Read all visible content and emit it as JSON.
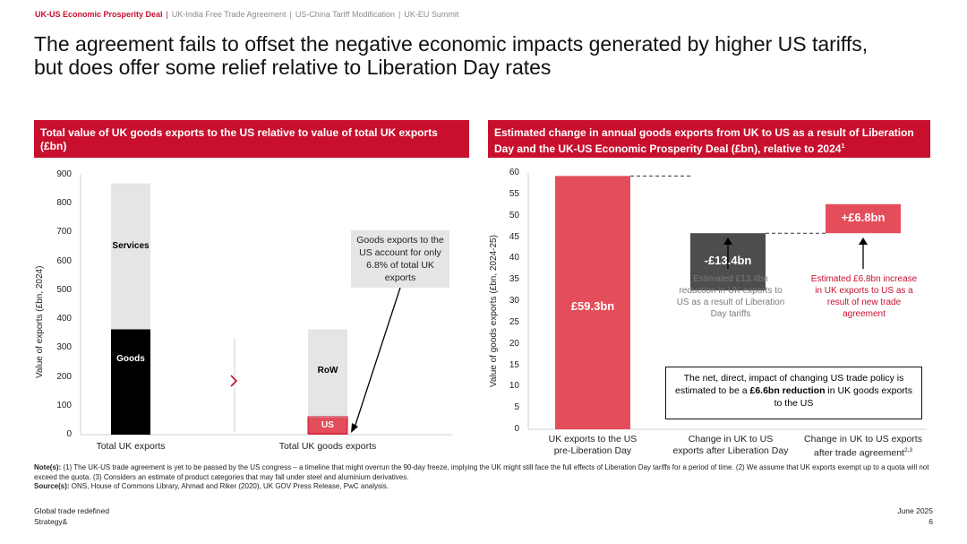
{
  "nav": {
    "active": "UK-US Economic Prosperity Deal",
    "items": [
      "UK-India Free Trade Agreement",
      "US-China Tariff Modification",
      "UK-EU Summit"
    ]
  },
  "title": {
    "line1": "The agreement fails to offset the negative economic impacts generated by higher US tariffs,",
    "line2": "but does offer some relief relative to Liberation Day rates"
  },
  "left_panel": {
    "heading": "Total value of UK goods exports to the US relative to value of total UK exports (£bn)",
    "callout": "Goods exports to the US account for only 6.8% of total UK exports"
  },
  "right_panel": {
    "heading": "Estimated change in annual goods exports from UK to US as a result of Liberation Day and the UK-US Economic Prosperity Deal (£bn), relative to 2024",
    "heading_sup": "1",
    "annotation_decrease": "Estimated £13.4bn reduction in UK exports to US as a result of Liberation Day tariffs",
    "annotation_increase": "Estimated £6.8bn increase in UK exports to US as a result of new trade agreement",
    "summary_pre": "The net, direct, impact of changing US trade policy is estimated to be a ",
    "summary_bold": "£6.6bn reduction",
    "summary_post": " in UK goods exports to the US"
  },
  "chart_data": [
    {
      "type": "bar",
      "stacked": true,
      "ylabel": "Value of exports (£bn, 2024)",
      "ylim": [
        0,
        900
      ],
      "yticks": [
        0,
        100,
        200,
        300,
        400,
        500,
        600,
        700,
        800,
        900
      ],
      "categories": [
        "Total UK exports",
        "Total UK goods exports"
      ],
      "segments": [
        {
          "category": "Total UK exports",
          "name": "Goods",
          "value": 365,
          "color": "#000000",
          "label_color": "#ffffff"
        },
        {
          "category": "Total UK exports",
          "name": "Services",
          "value": 505,
          "color": "#e5e5e5",
          "label_color": "#000000"
        },
        {
          "category": "Total UK goods exports",
          "name": "US",
          "value": 59,
          "color": "#e44d5a",
          "label_color": "#ffffff"
        },
        {
          "category": "Total UK goods exports",
          "name": "RoW",
          "value": 306,
          "color": "#e5e5e5",
          "label_color": "#000000"
        }
      ]
    },
    {
      "type": "bar",
      "waterfall": true,
      "ylabel": "Value of goods exports (£bn, 2024-25)",
      "ylim": [
        0,
        60
      ],
      "yticks": [
        0,
        5,
        10,
        15,
        20,
        25,
        30,
        35,
        40,
        45,
        50,
        55,
        60
      ],
      "categories": [
        [
          "UK exports to the US",
          "pre-Liberation Day"
        ],
        [
          "Change in UK to US",
          "exports after Liberation Day"
        ],
        [
          "Change in UK to US exports",
          "after trade agreement"
        ]
      ],
      "category_sup": [
        "",
        "",
        "2,3"
      ],
      "bars": [
        {
          "label": "£59.3bn",
          "base": 0,
          "value": 59.3,
          "color": "#e44d5a"
        },
        {
          "label": "-£13.4bn",
          "base": 45.9,
          "value": -13.4,
          "color": "#4d4d4f"
        },
        {
          "label": "+£6.8bn",
          "base": 45.9,
          "value": 6.8,
          "color": "#e44d5a"
        }
      ]
    }
  ],
  "footnotes": {
    "notes_label": "Note(s):",
    "notes": " (1) The UK-US trade agreement is yet to be passed by the US congress – a timeline that might overrun the 90-day freeze, implying the UK might still face the full effects of Liberation Day tariffs for a period of time. (2) We assume that UK exports exempt up to a quota will not exceed the quota. (3) Considers an estimate of product categories that may fall under steel and aluminium derivatives.",
    "sources_label": "Source(s):",
    "sources": " ONS, House of Commons Library, Ahmad and Riker (2020), UK GOV Press Release, PwC analysis."
  },
  "footer": {
    "left1": "Global trade redefined",
    "left2": "Strategy&",
    "right1": "June 2025",
    "right2": "6"
  },
  "colors": {
    "accent": "#c8102e",
    "bar_red": "#e44d5a",
    "bar_dark": "#4d4d4f",
    "grey": "#e5e5e5"
  }
}
